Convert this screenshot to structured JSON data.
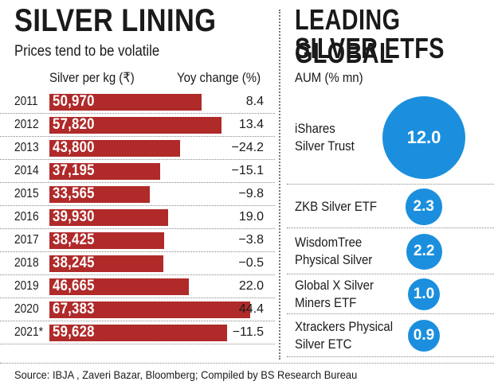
{
  "left": {
    "title": "SILVER LINING",
    "subtitle": "Prices tend to be volatile",
    "col_silver": "Silver per kg (₹)",
    "col_yoy": "Yoy change (%)"
  },
  "right": {
    "title_line1": "LEADING GLOBAL",
    "title_line2": "SILVER ETFS",
    "col_aum": "AUM (% mn)"
  },
  "chart_data": [
    {
      "type": "bar",
      "title": "SILVER LINING",
      "subtitle": "Prices tend to be volatile",
      "categories": [
        "2011",
        "2012",
        "2013",
        "2014",
        "2015",
        "2016",
        "2017",
        "2018",
        "2019",
        "2020",
        "2021*"
      ],
      "series": [
        {
          "name": "Silver per kg (₹)",
          "values": [
            50970,
            57820,
            43800,
            37195,
            33565,
            39930,
            38425,
            38245,
            46665,
            67383,
            59628
          ],
          "labels": [
            "50,970",
            "57,820",
            "43,800",
            "37,195",
            "33,565",
            "39,930",
            "38,425",
            "38,245",
            "46,665",
            "67,383",
            "59,628"
          ]
        },
        {
          "name": "Yoy change (%)",
          "values": [
            8.4,
            13.4,
            -24.2,
            -15.1,
            -9.8,
            19.0,
            -3.8,
            -0.5,
            22.0,
            44.4,
            -11.5
          ],
          "labels": [
            "8.4",
            "13.4",
            "-24.2",
            "-15.1",
            "-9.8",
            "19.0",
            "-3.8",
            "-0.5",
            "22.0",
            "44.4",
            "-11.5"
          ]
        }
      ],
      "color": "#b02a2a"
    },
    {
      "type": "bubble",
      "title": "LEADING GLOBAL SILVER ETFS",
      "value_label": "AUM (% mn)",
      "items": [
        {
          "name_lines": [
            "iShares",
            "Silver Trust"
          ],
          "value": 12.0,
          "label": "12.0"
        },
        {
          "name_lines": [
            "ZKB Silver ETF"
          ],
          "value": 2.3,
          "label": "2.3"
        },
        {
          "name_lines": [
            "WisdomTree",
            "Physical Silver"
          ],
          "value": 2.2,
          "label": "2.2"
        },
        {
          "name_lines": [
            "Global X Silver",
            "Miners ETF"
          ],
          "value": 1.0,
          "label": "1.0"
        },
        {
          "name_lines": [
            "Xtrackers Physical",
            "Silver ETC"
          ],
          "value": 0.9,
          "label": "0.9"
        }
      ],
      "color": "#1b8fdd"
    }
  ],
  "source": "Source: IBJA , Zaveri Bazar, Bloomberg;  Compiled by BS Research Bureau"
}
